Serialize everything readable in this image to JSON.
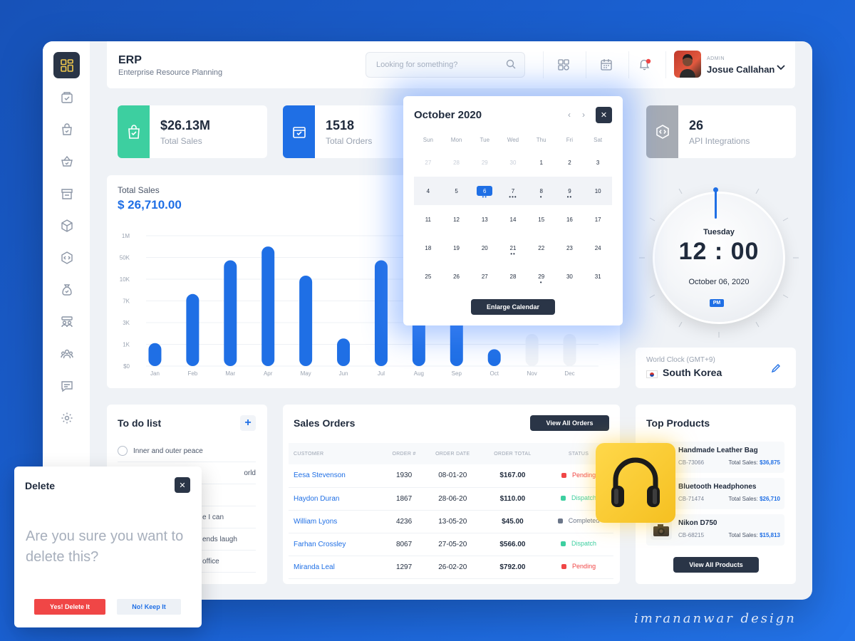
{
  "header": {
    "title": "ERP",
    "subtitle": "Enterprise Resource Planning",
    "search_placeholder": "Looking for something?",
    "user_role": "ADMIN",
    "user_name": "Josue Callahan"
  },
  "sidebar": {
    "items": [
      "dashboard-icon",
      "orders-icon",
      "bag-icon",
      "basket-icon",
      "store-icon",
      "box-icon",
      "api-icon",
      "money-bag-icon",
      "team-icon",
      "users-icon",
      "chat-icon",
      "settings-icon"
    ]
  },
  "stats": [
    {
      "value": "$26.13M",
      "label": "Total Sales",
      "color": "#3dcfa0"
    },
    {
      "value": "1518",
      "label": "Total Orders",
      "color": "#1f6fe5"
    },
    {
      "value": "26",
      "label": "API Integrations",
      "color": "#a6abb3"
    }
  ],
  "sales_chart": {
    "title": "Total Sales",
    "total": "$ 26,710.00"
  },
  "chart_data": {
    "type": "bar",
    "categories": [
      "Jan",
      "Feb",
      "Mar",
      "Apr",
      "May",
      "Jun",
      "Jul",
      "Aug",
      "Sep",
      "Oct",
      "Nov",
      "Dec"
    ],
    "values": [
      1.5,
      4.7,
      6.9,
      7.8,
      5.9,
      1.8,
      6.9,
      5.5,
      4.0,
      1.1,
      0,
      0
    ],
    "y_ticks": [
      "$0",
      "1K",
      "3K",
      "7K",
      "10K",
      "50K",
      "1M"
    ],
    "ylim": [
      0,
      8.5
    ],
    "grid": true,
    "bar_color": "#1f6fe5"
  },
  "calendar": {
    "month_label": "October 2020",
    "weekdays": [
      "Sun",
      "Mon",
      "Tue",
      "Wed",
      "Thu",
      "Fri",
      "Sat"
    ],
    "weeks": [
      [
        {
          "d": "27",
          "m": true
        },
        {
          "d": "28",
          "m": true
        },
        {
          "d": "29",
          "m": true
        },
        {
          "d": "30",
          "m": true
        },
        {
          "d": "1"
        },
        {
          "d": "2"
        },
        {
          "d": "3"
        }
      ],
      [
        {
          "d": "4"
        },
        {
          "d": "5"
        },
        {
          "d": "6",
          "sel": true,
          "dots": "••"
        },
        {
          "d": "7",
          "dots": "•••"
        },
        {
          "d": "8",
          "dots": "•"
        },
        {
          "d": "9",
          "dots": "••"
        },
        {
          "d": "10"
        }
      ],
      [
        {
          "d": "11"
        },
        {
          "d": "12"
        },
        {
          "d": "13"
        },
        {
          "d": "14"
        },
        {
          "d": "15"
        },
        {
          "d": "16"
        },
        {
          "d": "17"
        }
      ],
      [
        {
          "d": "18"
        },
        {
          "d": "19"
        },
        {
          "d": "20"
        },
        {
          "d": "21",
          "dots": "••"
        },
        {
          "d": "22"
        },
        {
          "d": "23"
        },
        {
          "d": "24"
        }
      ],
      [
        {
          "d": "25"
        },
        {
          "d": "26"
        },
        {
          "d": "27"
        },
        {
          "d": "28"
        },
        {
          "d": "29",
          "dots": "•"
        },
        {
          "d": "30"
        },
        {
          "d": "31"
        }
      ]
    ],
    "enlarge_label": "Enlarge Calendar"
  },
  "clock": {
    "day": "Tuesday",
    "time": "12 : 00",
    "date": "October 06, 2020",
    "ampm": "PM"
  },
  "world_clock": {
    "label": "World Clock (GMT+9)",
    "country": "South Korea"
  },
  "todo": {
    "title": "To do list",
    "items": [
      "Inner and outer peace",
      "orld",
      "",
      "e I can",
      "ends laugh",
      "office"
    ]
  },
  "sales_orders": {
    "title": "Sales Orders",
    "view_all": "View All Orders",
    "columns": [
      "CUSTOMER",
      "ORDER #",
      "ORDER DATE",
      "ORDER TOTAL",
      "STATUS"
    ],
    "rows": [
      {
        "customer": "Eesa Stevenson",
        "order": "1930",
        "date": "08-01-20",
        "total": "$167.00",
        "status": "Pending",
        "color": "#f04646"
      },
      {
        "customer": "Haydon Duran",
        "order": "1867",
        "date": "28-06-20",
        "total": "$110.00",
        "status": "Dispatch",
        "color": "#3dcfa0"
      },
      {
        "customer": "William Lyons",
        "order": "4236",
        "date": "13-05-20",
        "total": "$45.00",
        "status": "Completed",
        "color": "#6b7689"
      },
      {
        "customer": "Farhan Crossley",
        "order": "8067",
        "date": "27-05-20",
        "total": "$566.00",
        "status": "Dispatch",
        "color": "#3dcfa0"
      },
      {
        "customer": "Miranda Leal",
        "order": "1297",
        "date": "26-02-20",
        "total": "$792.00",
        "status": "Pending",
        "color": "#f04646"
      }
    ]
  },
  "top_products": {
    "title": "Top Products",
    "view_all": "View All Products",
    "items": [
      {
        "name": "Handmade Leather Bag",
        "code": "CB-73066",
        "sales_label": "Total Sales:",
        "sales": "$36,875"
      },
      {
        "name": "Bluetooth Headphones",
        "code": "CB-71474",
        "sales_label": "Total Sales:",
        "sales": "$26,710"
      },
      {
        "name": "Nikon D750",
        "code": "CB-68215",
        "sales_label": "Total Sales:",
        "sales": "$15,813"
      }
    ]
  },
  "delete_dialog": {
    "title": "Delete",
    "message": "Are you sure you want to delete this?",
    "yes_label": "Yes! Delete It",
    "no_label": "No! Keep It"
  },
  "signature": "imrananwar design"
}
